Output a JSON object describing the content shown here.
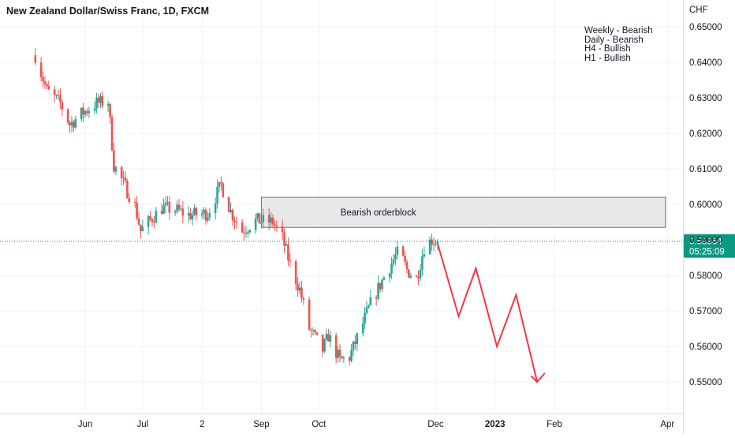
{
  "header": {
    "title": "New Zealand Dollar/Swiss Franc, 1D, FXCM"
  },
  "annotations": {
    "bias_notes": [
      "Weekly - Bearish",
      "Daily - Bearish",
      "H4 - Bullish",
      "H1 - Bullish"
    ],
    "orderblock_label": "Bearish orderblock"
  },
  "price_scale": {
    "currency": "CHF"
  },
  "current_price": {
    "price_label": "0.58964",
    "countdown": "05:25:09"
  },
  "colors": {
    "up": "#26a69a",
    "down": "#ef5350",
    "projection": "#f23645",
    "price_line": "#089981",
    "orderblock_fill": "#e8e8ea",
    "orderblock_border": "#6b6b6b",
    "grid": "#f0f3fa"
  },
  "chart_data": {
    "type": "candlestick",
    "symbol": "NZDCHF",
    "timeframe": "1D",
    "grid": true,
    "ylim": [
      0.5445,
      0.6555
    ],
    "y_ticks": [
      "0.65000",
      "0.64000",
      "0.63000",
      "0.62000",
      "0.61000",
      "0.60000",
      "0.59000",
      "0.58000",
      "0.57000",
      "0.56000",
      "0.55000"
    ],
    "x_ticks": [
      {
        "label": "Jun",
        "date": "2022-06-01"
      },
      {
        "label": "Jul",
        "date": "2022-07-01"
      },
      {
        "label": "2",
        "date": "2022-08-01"
      },
      {
        "label": "Sep",
        "date": "2022-09-01"
      },
      {
        "label": "Oct",
        "date": "2022-10-01"
      },
      {
        "label": "Dec",
        "date": "2022-12-01"
      },
      {
        "label": "2023",
        "date": "2023-01-01",
        "bold": true
      },
      {
        "label": "Feb",
        "date": "2023-02-01"
      },
      {
        "label": "Apr",
        "date": "2023-04-01"
      }
    ],
    "price_path": [
      {
        "date": "2022-05-06",
        "price": 0.642
      },
      {
        "date": "2022-05-12",
        "price": 0.632
      },
      {
        "date": "2022-05-19",
        "price": 0.6285
      },
      {
        "date": "2022-05-24",
        "price": 0.6225
      },
      {
        "date": "2022-05-30",
        "price": 0.6255
      },
      {
        "date": "2022-06-07",
        "price": 0.6285
      },
      {
        "date": "2022-06-13",
        "price": 0.629
      },
      {
        "date": "2022-06-16",
        "price": 0.611
      },
      {
        "date": "2022-06-21",
        "price": 0.606
      },
      {
        "date": "2022-06-27",
        "price": 0.5995
      },
      {
        "date": "2022-06-30",
        "price": 0.5925
      },
      {
        "date": "2022-07-04",
        "price": 0.595
      },
      {
        "date": "2022-07-11",
        "price": 0.599
      },
      {
        "date": "2022-07-18",
        "price": 0.5985
      },
      {
        "date": "2022-07-25",
        "price": 0.597
      },
      {
        "date": "2022-08-04",
        "price": 0.5975
      },
      {
        "date": "2022-08-11",
        "price": 0.6055
      },
      {
        "date": "2022-08-16",
        "price": 0.598
      },
      {
        "date": "2022-08-22",
        "price": 0.5925
      },
      {
        "date": "2022-08-29",
        "price": 0.5955
      },
      {
        "date": "2022-09-07",
        "price": 0.595
      },
      {
        "date": "2022-09-12",
        "price": 0.5905
      },
      {
        "date": "2022-09-16",
        "price": 0.583
      },
      {
        "date": "2022-09-21",
        "price": 0.576
      },
      {
        "date": "2022-09-26",
        "price": 0.565
      },
      {
        "date": "2022-10-03",
        "price": 0.559
      },
      {
        "date": "2022-10-06",
        "price": 0.563
      },
      {
        "date": "2022-10-12",
        "price": 0.556
      },
      {
        "date": "2022-10-17",
        "price": 0.557
      },
      {
        "date": "2022-10-24",
        "price": 0.5665
      },
      {
        "date": "2022-10-28",
        "price": 0.572
      },
      {
        "date": "2022-11-03",
        "price": 0.5785
      },
      {
        "date": "2022-11-09",
        "price": 0.5845
      },
      {
        "date": "2022-11-12",
        "price": 0.587
      },
      {
        "date": "2022-11-16",
        "price": 0.5815
      },
      {
        "date": "2022-11-21",
        "price": 0.579
      },
      {
        "date": "2022-11-25",
        "price": 0.588
      },
      {
        "date": "2022-11-29",
        "price": 0.59
      },
      {
        "date": "2022-12-02",
        "price": 0.58964
      }
    ],
    "current_price": 0.58964,
    "orderblock": {
      "label": "Bearish orderblock",
      "start": "2022-09-01",
      "end": "2023-03-31",
      "price_low": 0.5935,
      "price_high": 0.602
    },
    "projection": {
      "color": "#f23645",
      "points": [
        {
          "date": "2022-12-02",
          "price": 0.589
        },
        {
          "date": "2022-12-13",
          "price": 0.5685
        },
        {
          "date": "2022-12-22",
          "price": 0.582
        },
        {
          "date": "2023-01-02",
          "price": 0.56
        },
        {
          "date": "2023-01-12",
          "price": 0.5745
        },
        {
          "date": "2023-01-23",
          "price": 0.55
        },
        {
          "date": "2023-01-27",
          "price": 0.5525
        }
      ]
    }
  }
}
